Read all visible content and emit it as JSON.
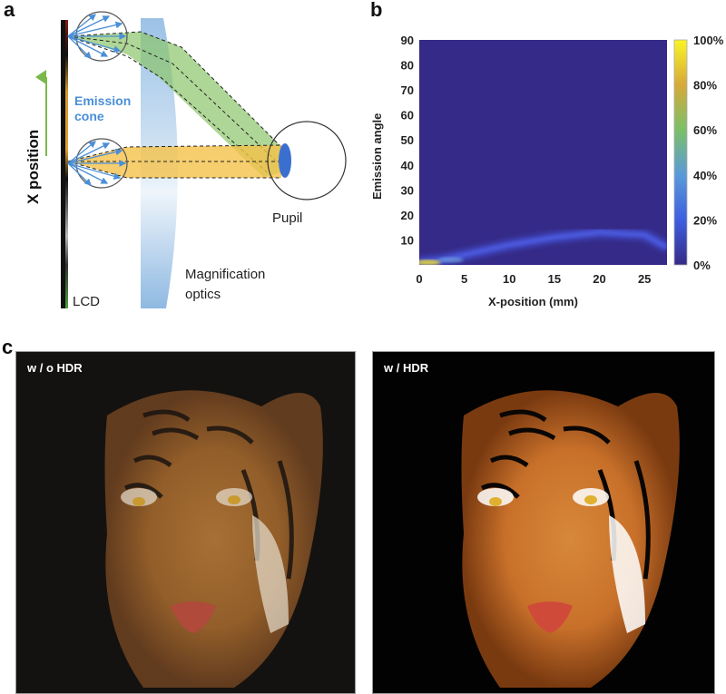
{
  "figure": {
    "panels": {
      "a": {
        "label": "a",
        "x_position_label": "X position",
        "emission_cone_label_line1": "Emission",
        "emission_cone_label_line2": "cone",
        "pupil_label": "Pupil",
        "optics_label_line1": "Magnification",
        "optics_label_line2": "optics",
        "lcd_label": "LCD",
        "colors": {
          "green_beam": "#8cc46a",
          "yellow_beam": "#f5c24a",
          "lens": "#a8cbe8",
          "pupil": "#3a6fd0",
          "cone_arrows": "#4a8fd8",
          "emission_text": "#4a8fd8",
          "arrow_green": "#7ab84a"
        }
      },
      "b": {
        "label": "b"
      },
      "c": {
        "label": "c",
        "left_caption": "w / o HDR",
        "right_caption": "w / HDR"
      }
    }
  },
  "chart_data": {
    "type": "heatmap",
    "title": "",
    "xlabel": "X-position (mm)",
    "ylabel": "Emission angle",
    "xlim": [
      0,
      27.5
    ],
    "ylim": [
      0,
      90
    ],
    "x_ticks": [
      "0",
      "5",
      "10",
      "15",
      "20",
      "25"
    ],
    "y_ticks": [
      "10",
      "20",
      "30",
      "40",
      "50",
      "60",
      "70",
      "80",
      "90"
    ],
    "colorbar": {
      "ticks": [
        "0%",
        "20%",
        "40%",
        "60%",
        "80%",
        "100%"
      ],
      "range": [
        0,
        100
      ],
      "colormap": "parula"
    },
    "description_points": [
      {
        "x": 0,
        "angle": 1,
        "intensity_pct": 100
      },
      {
        "x": 2.5,
        "angle": 2,
        "intensity_pct": 60
      },
      {
        "x": 5,
        "angle": 4,
        "intensity_pct": 30
      },
      {
        "x": 10,
        "angle": 8,
        "intensity_pct": 18
      },
      {
        "x": 15,
        "angle": 11,
        "intensity_pct": 16
      },
      {
        "x": 20,
        "angle": 13,
        "intensity_pct": 15
      },
      {
        "x": 25,
        "angle": 12,
        "intensity_pct": 14
      },
      {
        "x": 27.5,
        "angle": 7,
        "intensity_pct": 10
      }
    ],
    "background_intensity_pct": 0,
    "grid": false,
    "legend": "right"
  }
}
